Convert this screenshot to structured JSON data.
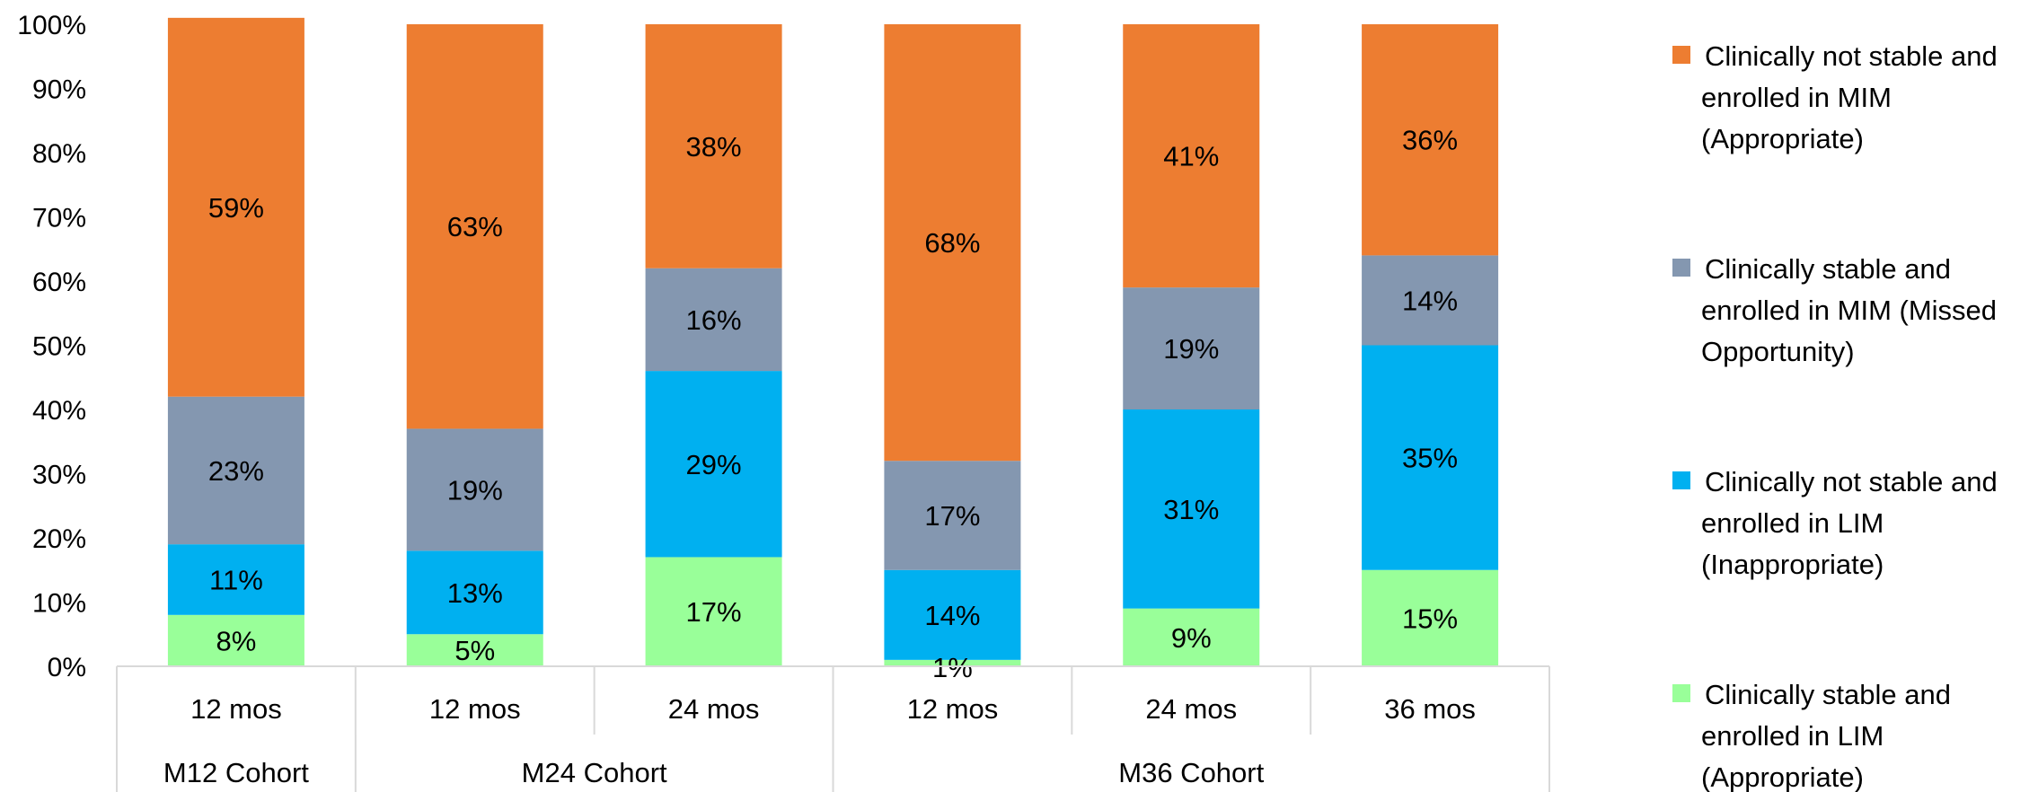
{
  "chart_data": {
    "type": "bar",
    "stacked": true,
    "percent_axis": true,
    "ylim": [
      0,
      100
    ],
    "y_ticks": [
      "0%",
      "10%",
      "20%",
      "30%",
      "40%",
      "50%",
      "60%",
      "70%",
      "80%",
      "90%",
      "100%"
    ],
    "categories": [
      "12 mos",
      "12 mos",
      "24 mos",
      "12 mos",
      "24 mos",
      "36 mos"
    ],
    "groups": [
      {
        "label": "M12 Cohort",
        "span": 1
      },
      {
        "label": "M24 Cohort",
        "span": 2
      },
      {
        "label": "M36 Cohort",
        "span": 3
      }
    ],
    "legend_position": "right",
    "series": [
      {
        "name": "Clinically stable and enrolled in LIM (Appropriate)",
        "color": "#99ff99",
        "values": [
          8,
          5,
          17,
          1,
          9,
          15
        ],
        "labels": [
          "8%",
          "5%",
          "17%",
          "1%",
          "9%",
          "15%"
        ]
      },
      {
        "name": "Clinically not stable and enrolled in LIM (Inappropriate)",
        "color": "#00b0f0",
        "values": [
          11,
          13,
          29,
          14,
          31,
          35
        ],
        "labels": [
          "11%",
          "13%",
          "29%",
          "14%",
          "31%",
          "35%"
        ]
      },
      {
        "name": "Clinically stable and enrolled in MIM (Missed Opportunity)",
        "color": "#8497b0",
        "values": [
          23,
          19,
          16,
          17,
          19,
          14
        ],
        "labels": [
          "23%",
          "19%",
          "16%",
          "17%",
          "19%",
          "14%"
        ]
      },
      {
        "name": "Clinically not stable and enrolled in MIM (Appropriate)",
        "color": "#ed7d31",
        "values": [
          59,
          63,
          38,
          68,
          41,
          36
        ],
        "labels": [
          "59%",
          "63%",
          "38%",
          "68%",
          "41%",
          "36%"
        ]
      }
    ],
    "legend": [
      {
        "lines": [
          "Clinically not stable and",
          "enrolled in MIM",
          "(Appropriate)"
        ],
        "color": "#ed7d31"
      },
      {
        "lines": [
          "Clinically stable and",
          "enrolled in MIM (Missed",
          "Opportunity)"
        ],
        "color": "#8497b0"
      },
      {
        "lines": [
          "Clinically not stable and",
          "enrolled in LIM",
          "(Inappropriate)"
        ],
        "color": "#00b0f0"
      },
      {
        "lines": [
          "Clinically stable and",
          "enrolled in LIM",
          "(Appropriate)"
        ],
        "color": "#99ff99"
      }
    ]
  }
}
